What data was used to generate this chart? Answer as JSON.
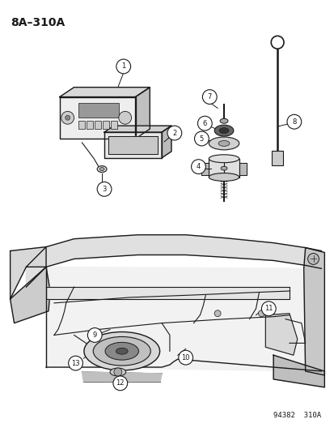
{
  "title": "8A–310A",
  "background_color": "#ffffff",
  "line_color": "#1a1a1a",
  "catalog_number": "94382  310A",
  "figsize": [
    4.14,
    5.33
  ],
  "dpi": 100
}
